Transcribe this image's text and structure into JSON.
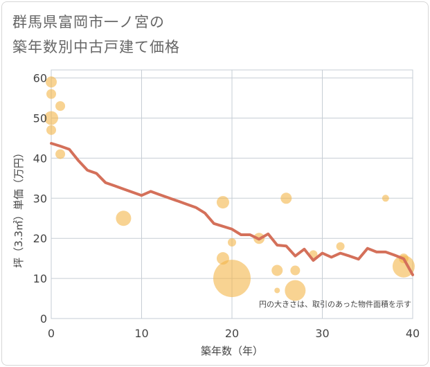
{
  "chart_data": {
    "type": "scatter",
    "title_lines": [
      "群馬県富岡市一ノ宮の",
      "築年数別中古戸建て価格"
    ],
    "xlabel": "築年数（年）",
    "ylabel": "坪（3.3㎡）単価（万円）",
    "xlim": [
      0,
      40
    ],
    "ylim": [
      0,
      62
    ],
    "xticks": [
      0,
      10,
      20,
      30,
      40
    ],
    "yticks": [
      0,
      10,
      20,
      30,
      40,
      50,
      60
    ],
    "grid": true,
    "note": "円の大きさは、取引のあった物件面積を示す",
    "bubble_color": "#f4b54a",
    "line_color": "#d4705a",
    "scatter": [
      {
        "x": 0,
        "y": 59,
        "size": 8
      },
      {
        "x": 0,
        "y": 56,
        "size": 7
      },
      {
        "x": 0,
        "y": 50,
        "size": 10
      },
      {
        "x": 0,
        "y": 47,
        "size": 7
      },
      {
        "x": 1,
        "y": 53,
        "size": 7
      },
      {
        "x": 1,
        "y": 41,
        "size": 7
      },
      {
        "x": 8,
        "y": 25,
        "size": 11
      },
      {
        "x": 19,
        "y": 29,
        "size": 9
      },
      {
        "x": 19,
        "y": 15,
        "size": 9
      },
      {
        "x": 20,
        "y": 19,
        "size": 6
      },
      {
        "x": 20,
        "y": 10,
        "size": 27
      },
      {
        "x": 23,
        "y": 20,
        "size": 8
      },
      {
        "x": 25,
        "y": 12,
        "size": 8
      },
      {
        "x": 25,
        "y": 7,
        "size": 4
      },
      {
        "x": 26,
        "y": 30,
        "size": 8
      },
      {
        "x": 27,
        "y": 12,
        "size": 7
      },
      {
        "x": 27,
        "y": 7,
        "size": 15
      },
      {
        "x": 29,
        "y": 16,
        "size": 6
      },
      {
        "x": 32,
        "y": 18,
        "size": 6
      },
      {
        "x": 37,
        "y": 30,
        "size": 5
      },
      {
        "x": 39,
        "y": 15,
        "size": 7
      },
      {
        "x": 39,
        "y": 13,
        "size": 16
      }
    ],
    "line": {
      "x": [
        0,
        1,
        2,
        3,
        4,
        5,
        6,
        7,
        8,
        9,
        10,
        11,
        12,
        13,
        14,
        15,
        16,
        17,
        18,
        19,
        20,
        21,
        22,
        23,
        24,
        25,
        26,
        27,
        28,
        29,
        30,
        31,
        32,
        33,
        34,
        35,
        36,
        37,
        38,
        39,
        40
      ],
      "y": [
        43.7,
        43,
        42.2,
        39.4,
        37,
        36.2,
        33.9,
        33.1,
        32.3,
        31.5,
        30.7,
        31.7,
        30.9,
        30.1,
        29.3,
        28.5,
        27.7,
        26.3,
        23.7,
        23,
        22.3,
        20.9,
        20.9,
        19.8,
        21.1,
        18.3,
        18.1,
        15.6,
        17.3,
        14.5,
        16.3,
        15.3,
        16.3,
        15.6,
        14.8,
        17.5,
        16.6,
        16.6,
        15.8,
        14.9,
        10.9
      ]
    }
  }
}
